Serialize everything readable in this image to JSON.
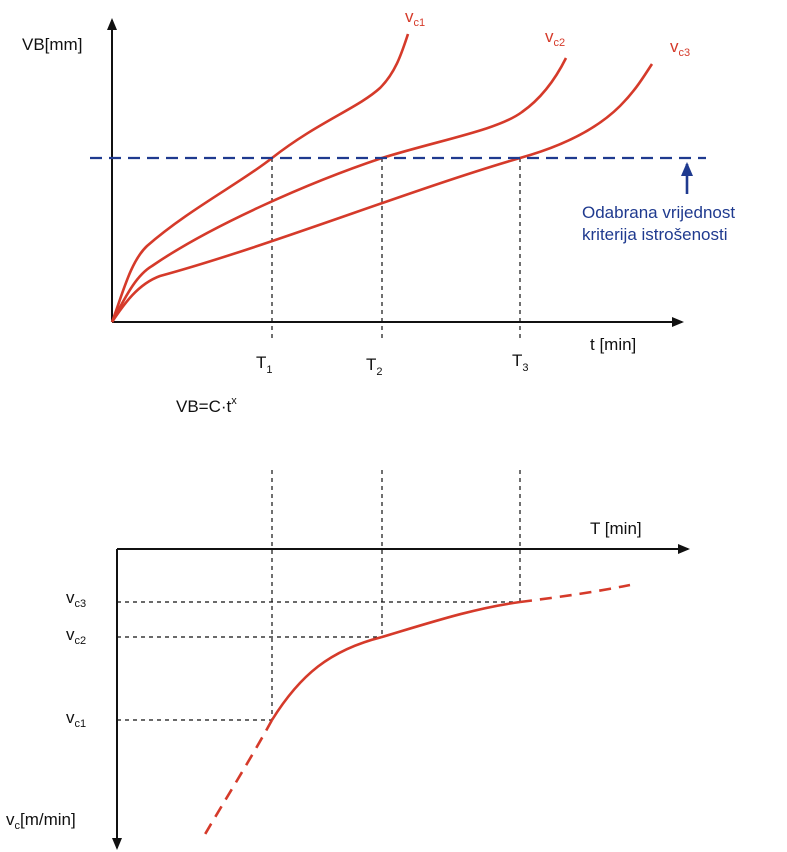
{
  "colors": {
    "axis": "#111111",
    "curve": "#d53a2a",
    "criterion": "#1f3a8f",
    "guide": "#111111",
    "background": "#ffffff"
  },
  "top_chart": {
    "y_axis": {
      "label": "VB[mm]"
    },
    "x_axis": {
      "label": "t [min]"
    },
    "curves": [
      {
        "base": "v",
        "sub": "c1"
      },
      {
        "base": "v",
        "sub": "c2"
      },
      {
        "base": "v",
        "sub": "c3"
      }
    ],
    "times": [
      {
        "base": "T",
        "sub": "1"
      },
      {
        "base": "T",
        "sub": "2"
      },
      {
        "base": "T",
        "sub": "3"
      }
    ],
    "criterion": {
      "line1": "Odabrana vrijednost",
      "line2": "kriterija istrošenosti"
    },
    "formula": {
      "base": "VB=C·t",
      "sup": "x"
    }
  },
  "bottom_chart": {
    "x_axis": {
      "label": "T [min]"
    },
    "y_axis": {
      "base": "v",
      "sub": "c",
      "rest": "[m/min]"
    },
    "speeds": [
      {
        "base": "v",
        "sub": "c3"
      },
      {
        "base": "v",
        "sub": "c2"
      },
      {
        "base": "v",
        "sub": "c1"
      }
    ]
  }
}
